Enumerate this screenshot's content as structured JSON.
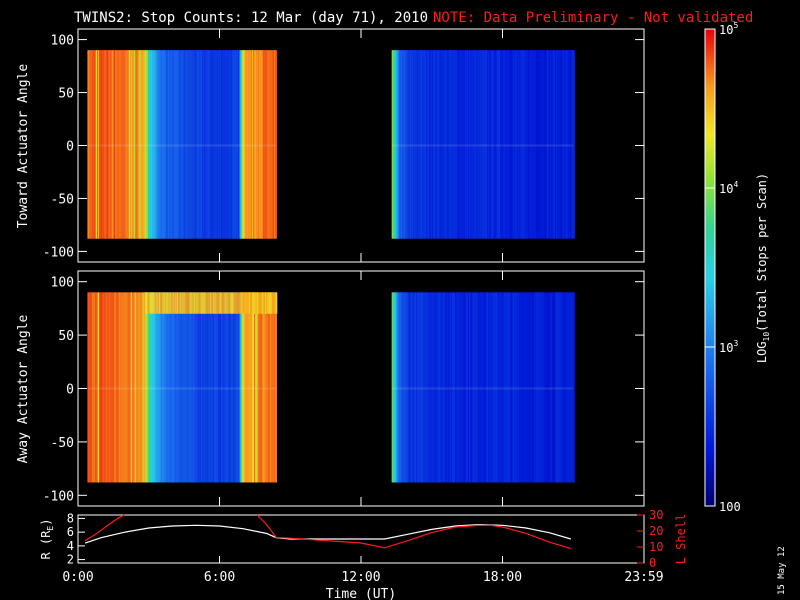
{
  "header": {
    "title": "TWINS2: Stop Counts: 12 Mar (day  71), 2010",
    "note": "NOTE: Data Preliminary - Not validated"
  },
  "stamp": "15 May 12",
  "colors": {
    "background": "#000000",
    "axes": "#ffffff",
    "note": "#ff1a1a",
    "r_line": "#ffffff",
    "l_line": "#ff1a1a"
  },
  "chart_data": [
    {
      "type": "heatmap",
      "panel": "top",
      "ylabel": "Toward Actuator Angle",
      "ylim": [
        -110,
        110
      ],
      "yticks": [
        100,
        50,
        0,
        -50,
        -100
      ],
      "xlim_hours": [
        0,
        24
      ],
      "data_y_range": [
        -88,
        90
      ],
      "data_intervals_hours": [
        [
          0.4,
          8.4
        ],
        [
          13.3,
          21.0
        ]
      ],
      "log10_counts_profile": {
        "hours": [
          0.4,
          1.0,
          2.0,
          2.8,
          3.0,
          3.5,
          4.0,
          5.0,
          6.0,
          6.8,
          7.0,
          7.5,
          8.0,
          8.4,
          13.3,
          13.45,
          13.6,
          14.0,
          15.0,
          16.0,
          17.0,
          18.0,
          19.0,
          20.0,
          21.0
        ],
        "values": [
          4.75,
          4.8,
          4.75,
          4.6,
          3.5,
          2.9,
          2.75,
          2.6,
          2.55,
          2.6,
          4.6,
          4.7,
          4.75,
          4.7,
          4.1,
          3.3,
          2.85,
          2.55,
          2.5,
          2.45,
          2.45,
          2.45,
          2.4,
          2.4,
          2.4
        ]
      }
    },
    {
      "type": "heatmap",
      "panel": "bottom",
      "ylabel": "Away Actuator Angle",
      "ylim": [
        -110,
        110
      ],
      "yticks": [
        100,
        50,
        0,
        -50,
        -100
      ],
      "xlim_hours": [
        0,
        24
      ],
      "data_y_range": [
        -88,
        90
      ],
      "data_intervals_hours": [
        [
          0.4,
          8.4
        ],
        [
          13.3,
          21.0
        ]
      ],
      "log10_counts_profile": {
        "hours": [
          0.4,
          1.0,
          2.0,
          2.8,
          3.0,
          3.5,
          4.0,
          5.0,
          6.0,
          6.8,
          7.0,
          7.5,
          8.0,
          8.4,
          13.3,
          13.45,
          13.6,
          14.0,
          15.0,
          16.0,
          17.0,
          18.0,
          19.0,
          20.0,
          21.0
        ],
        "values": [
          4.75,
          4.8,
          4.75,
          4.6,
          3.6,
          3.0,
          2.85,
          2.65,
          2.6,
          2.65,
          4.6,
          4.7,
          4.75,
          4.7,
          3.9,
          3.2,
          2.8,
          2.55,
          2.5,
          2.45,
          2.45,
          2.45,
          2.4,
          2.4,
          2.4
        ]
      },
      "high_angle_band_log10": {
        "y_from": 70,
        "y_to": 90,
        "hours": [
          2.8,
          8.4
        ],
        "value": 4.5
      }
    },
    {
      "type": "line",
      "panel": "orbit",
      "xlabel": "Time (UT)",
      "xlim_hours": [
        0,
        24
      ],
      "xticks": [
        "0:00",
        "6:00",
        "12:00",
        "18:00",
        "23:59"
      ],
      "ylabel_left": "R (R",
      "ylabel_left_sub": "E",
      "ylabel_left_end": ")",
      "ylim_left": [
        1.5,
        8.5
      ],
      "yticks_left": [
        8,
        6,
        4,
        2
      ],
      "ylabel_right": "L Shell",
      "ylim_right": [
        0,
        30
      ],
      "yticks_right": [
        30,
        20,
        10,
        0
      ],
      "series": [
        {
          "name": "R (R_E)",
          "axis": "left",
          "x": [
            0.3,
            1,
            2,
            3,
            4,
            5,
            6,
            7,
            8,
            8.4,
            9,
            10,
            11,
            12,
            13,
            14,
            15,
            16,
            17,
            18,
            19,
            20,
            20.9
          ],
          "y": [
            4.4,
            5.2,
            6.0,
            6.6,
            6.9,
            7.0,
            6.9,
            6.5,
            5.8,
            5.2,
            5.0,
            5.0,
            5.0,
            5.0,
            5.0,
            5.7,
            6.4,
            6.9,
            7.1,
            7.0,
            6.6,
            5.9,
            5.0
          ]
        },
        {
          "name": "L Shell",
          "axis": "right",
          "segments": [
            {
              "x": [
                0.3,
                0.8,
                1.3,
                1.7,
                1.95
              ],
              "y": [
                14,
                18.5,
                24,
                28,
                30
              ]
            },
            {
              "x": [
                7.6,
                8.0,
                8.4,
                9,
                10,
                11,
                12,
                13
              ],
              "y": [
                30,
                24,
                16,
                15.5,
                14.5,
                13.5,
                12.5,
                9.5
              ]
            },
            {
              "x": [
                13,
                14,
                15,
                16,
                17,
                17.5,
                18,
                19,
                20,
                20.9
              ],
              "y": [
                9.5,
                14,
                19,
                22.5,
                23.5,
                23.5,
                22.5,
                18.5,
                13,
                9
              ]
            }
          ]
        }
      ]
    },
    {
      "type": "heatmap",
      "panel": "colorbar",
      "label": "LOG",
      "label_sub": "10",
      "label_end": "(Total Stops per Scan)",
      "tick_labels": [
        "10",
        "10",
        "10",
        "100"
      ],
      "tick_exponents": [
        "5",
        "4",
        "3",
        ""
      ],
      "log10_range": [
        2,
        5
      ]
    }
  ]
}
